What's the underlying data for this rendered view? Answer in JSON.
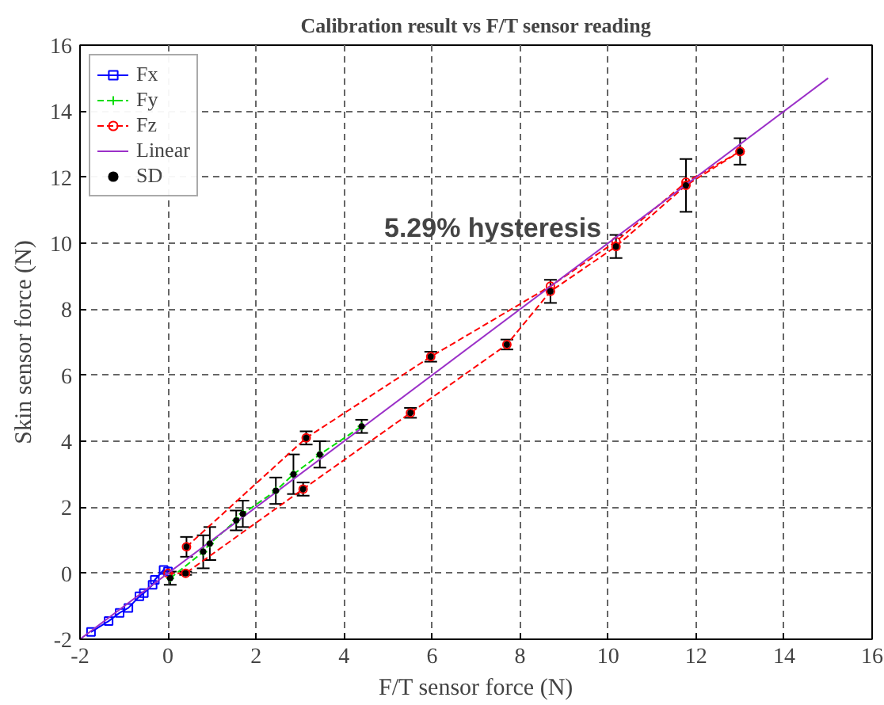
{
  "chart_data": {
    "type": "line",
    "title": "Calibration result vs F/T sensor reading",
    "xlabel": "F/T sensor force (N)",
    "ylabel": "Skin sensor force (N)",
    "xlim": [
      -2,
      16
    ],
    "ylim": [
      -2,
      16
    ],
    "xticks": [
      -2,
      0,
      2,
      4,
      6,
      8,
      10,
      12,
      14,
      16
    ],
    "yticks": [
      -2,
      0,
      2,
      4,
      6,
      8,
      10,
      12,
      14,
      16
    ],
    "grid": true,
    "legend": "top left",
    "annotations": [
      "5.29% hysteresis"
    ],
    "series": [
      {
        "name": "Fx",
        "color": "#0000ff",
        "marker": "square",
        "line_style": "solid",
        "x": [
          -1.75,
          -1.35,
          -1.1,
          -0.9,
          -0.65,
          -0.55,
          -0.35,
          -0.3,
          -0.1,
          0.0
        ],
        "values": [
          -1.78,
          -1.45,
          -1.2,
          -1.05,
          -0.7,
          -0.6,
          -0.35,
          -0.2,
          0.1,
          0.05
        ]
      },
      {
        "name": "Fy",
        "color": "#00dd00",
        "marker": "cross",
        "line_style": "dashed",
        "x": [
          0.05,
          0.8,
          0.95,
          1.55,
          1.7,
          2.45,
          2.85,
          3.45,
          4.4
        ],
        "values": [
          -0.15,
          0.65,
          0.9,
          1.6,
          1.8,
          2.5,
          3.0,
          3.6,
          4.45
        ]
      },
      {
        "name": "Fz",
        "color": "#ff0000",
        "marker": "circle",
        "line_style": "dashed",
        "x": [
          0.0,
          0.4,
          3.07,
          5.51,
          7.7,
          8.69,
          10.18,
          11.77,
          13.0
        ],
        "values": [
          0.0,
          0.0,
          2.55,
          4.86,
          6.93,
          8.54,
          9.9,
          11.75,
          12.78
        ]
      },
      {
        "color": "#ff0000",
        "marker": "circle",
        "line_style": "dashed",
        "x": [
          0.42,
          3.14,
          5.97,
          8.69,
          10.18,
          11.77,
          13.0
        ],
        "values": [
          0.8,
          4.1,
          6.56,
          8.7,
          10.05,
          11.85,
          12.78
        ]
      },
      {
        "name": "Linear",
        "color": "#9b30c8",
        "marker": "none",
        "line_style": "solid",
        "x": [
          -2,
          15
        ],
        "values": [
          -2,
          15
        ]
      },
      {
        "name": "SD",
        "type": "scatter",
        "color": "#000000",
        "marker": "circle",
        "x": [
          0.42,
          3.14,
          3.07,
          5.97,
          5.51,
          7.7,
          8.69,
          10.18,
          11.77,
          13.0,
          0.4,
          0.05,
          0.8,
          0.95,
          1.55,
          1.7,
          2.45,
          2.85,
          3.45,
          4.4
        ],
        "values": [
          0.8,
          4.1,
          2.55,
          6.56,
          4.86,
          6.93,
          8.54,
          9.9,
          11.75,
          12.78,
          0.0,
          -0.15,
          0.65,
          0.9,
          1.6,
          1.8,
          2.5,
          3.0,
          3.6,
          4.45
        ],
        "errors": [
          0.3,
          0.2,
          0.2,
          0.15,
          0.15,
          0.15,
          0.35,
          0.35,
          0.8,
          0.4,
          0.05,
          0.2,
          0.5,
          0.5,
          0.3,
          0.4,
          0.4,
          0.6,
          0.4,
          0.2
        ]
      }
    ]
  }
}
